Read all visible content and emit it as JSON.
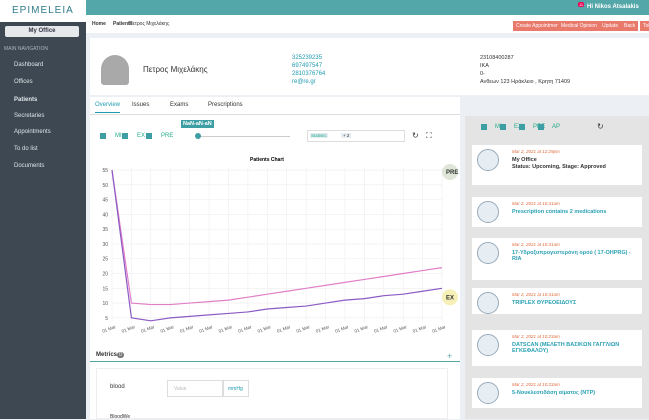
{
  "sidebar": {
    "logo": "EPIMELEIA",
    "office_button": "My Office",
    "section": "MAIN NAVIGATION",
    "items": [
      "Dashboard",
      "Offices",
      "Patients",
      "Secretaries",
      "Appointments",
      "To do list",
      "Documents"
    ]
  },
  "header": {
    "notifications": "11",
    "user": "Hi Nikos Atsalakis"
  },
  "breadcrumb": [
    "Home",
    "Patients",
    "Πετρος Μιχελάκης"
  ],
  "actions": [
    "Create Appointment",
    "Medical Opinion",
    "Update",
    "Back",
    "ToDo"
  ],
  "patient": {
    "name": "Πετρος Μιχελάκης",
    "contacts": [
      "325239235",
      "697497547",
      "2810376764",
      "re@re.gr"
    ],
    "details": [
      "23108400287",
      "IKA",
      "0-",
      "Ανθεων 123 Ηράκλειο , Κρητη 71409"
    ]
  },
  "tabs": [
    "Overview",
    "Issues",
    "Exams",
    "Prescriptions"
  ],
  "filters": [
    "MI",
    "EX",
    "PRE"
  ],
  "slider_label": "NaN-aN-aN",
  "statistic": {
    "label": "Statistic",
    "count": "+ 2"
  },
  "chart": {
    "type": "line",
    "title": "Patients Chart",
    "categories": [
      "01 Mar",
      "01 Mar",
      "01 Mar",
      "01 Mar",
      "01 Mar",
      "01 Mar",
      "01 Mar",
      "01 Mar",
      "01 Mar",
      "01 Mar",
      "01 Mar",
      "01 Mar",
      "01 Mar",
      "01 Mar",
      "01 Mar",
      "01 Mar",
      "01 Mar",
      "01 Mar"
    ],
    "series": [
      {
        "name": "PRE",
        "color": "#e07fc7",
        "values": [
          55,
          10,
          9.5,
          9.5,
          10,
          10.5,
          11,
          12,
          13,
          14,
          15,
          16,
          17,
          18,
          19,
          20,
          21,
          22
        ]
      },
      {
        "name": "EX",
        "color": "#8b5bc4",
        "values": [
          55,
          5,
          4,
          5,
          5.5,
          6,
          6.5,
          7,
          8,
          8.5,
          9,
          10,
          11,
          11.5,
          12.5,
          13,
          14,
          15
        ]
      }
    ],
    "ylim": [
      3.6,
      55.7
    ],
    "yticks": [
      5,
      10,
      15,
      20,
      25,
      30,
      35,
      40,
      45,
      50,
      55
    ],
    "grid": true
  },
  "metrics": {
    "title": "Metrics",
    "count": "0",
    "field": "blood",
    "placeholder": "Value",
    "unit": "mmHg",
    "next": "BloodWe"
  },
  "timeline": {
    "filters": [
      "MI",
      "EX",
      "PRE",
      "AP"
    ],
    "items": [
      {
        "date": "Mar 2, 2021 at 12:29pm",
        "title": "My Office",
        "text": "Status: Upcoming, Stage: Approved"
      },
      {
        "date": "Mar 2, 2021 at 10:41am",
        "title": "Prescription contains 2 medications"
      },
      {
        "date": "Mar 2, 2021 at 10:41am",
        "title": "17-Υδροξυπρογεστερόνη ορού ( 17-OHPRG) - RIA"
      },
      {
        "date": "Mar 2, 2021 at 10:41am",
        "title": "TRIPLEX ΘΥΡΕΟΕΙΔΟΥΣ"
      },
      {
        "date": "Mar 2, 2021 at 10:23am",
        "title": "DATSCAN (ΜΕΛΕΤΗ ΒΑΣΙΚΩΝ ΓΑΓΓΛΙΩΝ ΕΓΚΕΦΑΛΟΥ)"
      },
      {
        "date": "Mar 2, 2021 at 10:23am",
        "title": "5-Νουκλεοτιδάση αίματος (NTP)"
      }
    ]
  }
}
